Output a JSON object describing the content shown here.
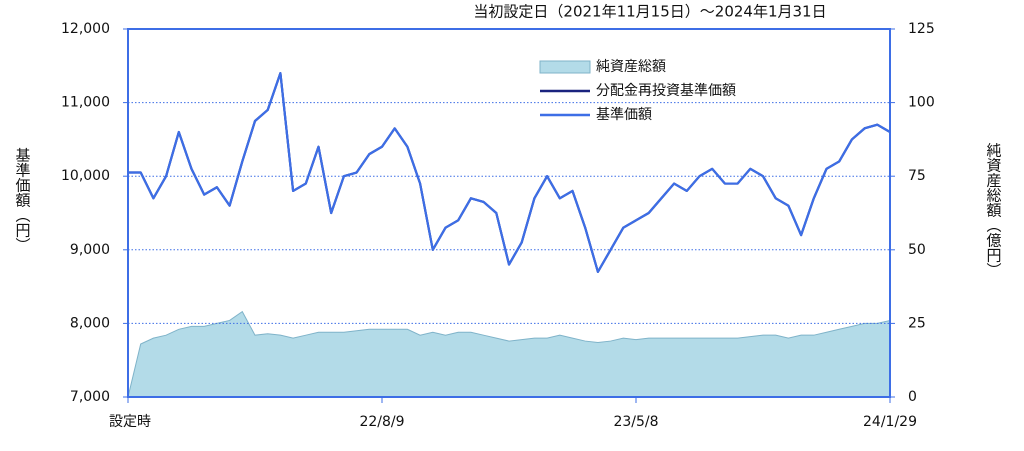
{
  "chart_data": {
    "type": "line",
    "title": "当初設定日（2021年11月15日）～2024年1月31日",
    "y_label": "基準価額（円）",
    "y2_label": "純資産総額（億円）",
    "categories": [
      "設定時",
      null,
      null,
      null,
      null,
      null,
      null,
      null,
      null,
      null,
      null,
      null,
      null,
      null,
      null,
      null,
      null,
      null,
      null,
      null,
      "22/8/9",
      null,
      null,
      null,
      null,
      null,
      null,
      null,
      null,
      null,
      null,
      null,
      null,
      null,
      null,
      null,
      null,
      null,
      null,
      null,
      "23/5/8",
      null,
      null,
      null,
      null,
      null,
      null,
      null,
      null,
      null,
      null,
      null,
      null,
      null,
      null,
      null,
      null,
      null,
      null,
      null,
      "24/1/29"
    ],
    "ylim": [
      7000,
      12000
    ],
    "yticks": [
      {
        "value": 7000,
        "label": "7,000"
      },
      {
        "value": 8000,
        "label": "8,000"
      },
      {
        "value": 9000,
        "label": "9,000"
      },
      {
        "value": 10000,
        "label": "10,000"
      },
      {
        "value": 11000,
        "label": "11,000"
      },
      {
        "value": 12000,
        "label": "12,000"
      }
    ],
    "y2lim": [
      0,
      125
    ],
    "y2ticks": [
      0,
      25,
      50,
      75,
      100,
      125
    ],
    "grid": true,
    "series": [
      {
        "name": "純資産総額",
        "type": "area",
        "axis": "y2",
        "color": "#b3dbe8",
        "values": [
          0,
          18,
          20,
          21,
          23,
          24,
          24,
          25,
          26,
          29,
          21,
          21.5,
          21,
          20,
          21,
          22,
          22,
          22,
          22.5,
          23,
          23,
          23,
          23,
          21,
          22,
          21,
          22,
          22,
          21,
          20,
          19,
          19.5,
          20,
          20,
          21,
          20,
          19,
          18.5,
          19,
          20,
          19.5,
          20,
          20,
          20,
          20,
          20,
          20,
          20,
          20,
          20.5,
          21,
          21,
          20,
          21,
          21,
          22,
          23,
          24,
          25,
          25,
          26
        ]
      },
      {
        "name": "分配金再投資基準価額",
        "type": "line",
        "color": "#1a237e",
        "values": [
          10050,
          10050,
          9700,
          10000,
          10600,
          10100,
          9750,
          9850,
          9600,
          10200,
          10750,
          10900,
          11400,
          9800,
          9900,
          10400,
          9500,
          10000,
          10050,
          10300,
          10400,
          10650,
          10400,
          9900,
          9000,
          9300,
          9400,
          9700,
          9650,
          9500,
          8800,
          9100,
          9700,
          10000,
          9700,
          9800,
          9300,
          8700,
          9000,
          9300,
          9400,
          9500,
          9700,
          9900,
          9800,
          10000,
          10100,
          9900,
          9900,
          10100,
          10000,
          9700,
          9600,
          9200,
          9700,
          10100,
          10200,
          10500,
          10650,
          10700,
          10600
        ]
      },
      {
        "name": "基準価額",
        "type": "line",
        "color": "#3d6ee6",
        "values": [
          10050,
          10050,
          9700,
          10000,
          10600,
          10100,
          9750,
          9850,
          9600,
          10200,
          10750,
          10900,
          11400,
          9800,
          9900,
          10400,
          9500,
          10000,
          10050,
          10300,
          10400,
          10650,
          10400,
          9900,
          9000,
          9300,
          9400,
          9700,
          9650,
          9500,
          8800,
          9100,
          9700,
          10000,
          9700,
          9800,
          9300,
          8700,
          9000,
          9300,
          9400,
          9500,
          9700,
          9900,
          9800,
          10000,
          10100,
          9900,
          9900,
          10100,
          10000,
          9700,
          9600,
          9200,
          9700,
          10100,
          10200,
          10500,
          10650,
          10700,
          10600
        ]
      }
    ]
  }
}
